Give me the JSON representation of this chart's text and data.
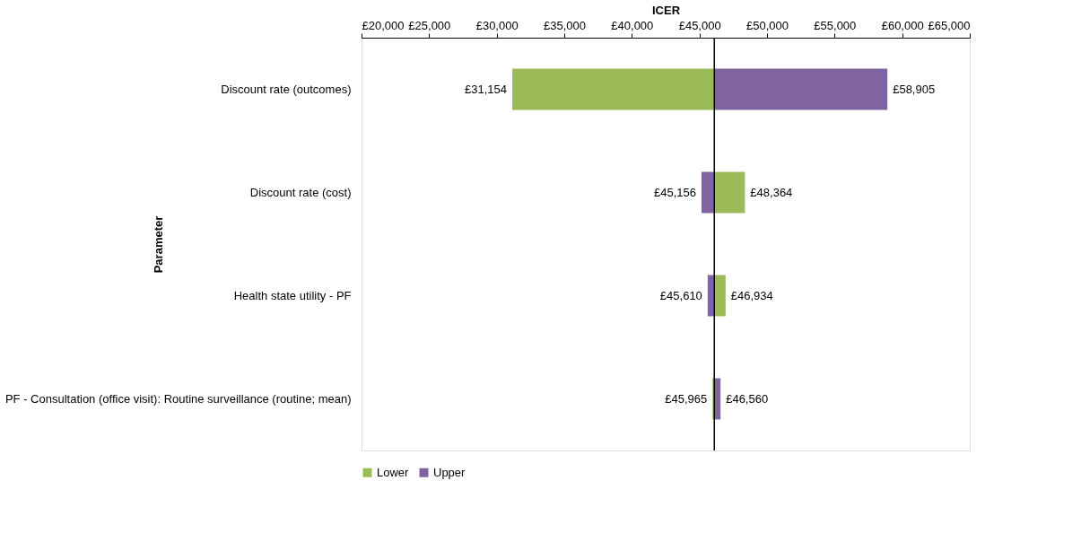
{
  "chart_data": {
    "type": "bar",
    "orientation": "horizontal",
    "xlabel": "ICER",
    "ylabel": "Parameter",
    "categories": [
      "Discount rate (outcomes)",
      "Discount rate (cost)",
      "Health state utility - PF",
      "PF - Consultation (office visit): Routine surveillance (routine; mean)"
    ],
    "series": [
      {
        "name": "Lower",
        "color": "#9bbb59",
        "base": [
          46100,
          46100,
          46100,
          46100
        ],
        "values": [
          -14946,
          2264,
          834,
          -135
        ],
        "value_labels": [
          "£31,154",
          "£48,364",
          "£46,934",
          "£45,965"
        ]
      },
      {
        "name": "Upper",
        "color": "#8064a2",
        "base": [
          46100,
          46100,
          46100,
          46100
        ],
        "values": [
          12805,
          -944,
          -490,
          460
        ],
        "value_labels": [
          "£58,905",
          "£45,156",
          "£45,610",
          "£46,560"
        ]
      }
    ],
    "xlim": [
      20000,
      65000
    ],
    "xticks": [
      {
        "value": 20000,
        "label": "£20,000"
      },
      {
        "value": 25000,
        "label": "£25,000"
      },
      {
        "value": 30000,
        "label": "£30,000"
      },
      {
        "value": 35000,
        "label": "£35,000"
      },
      {
        "value": 40000,
        "label": "£40,000"
      },
      {
        "value": 45000,
        "label": "£45,000"
      },
      {
        "value": 50000,
        "label": "£50,000"
      },
      {
        "value": 55000,
        "label": "£55,000"
      },
      {
        "value": 60000,
        "label": "£60,000"
      },
      {
        "value": 65000,
        "label": "£65,000"
      }
    ],
    "ref_lines": [
      {
        "axis": "x",
        "value": 46100,
        "color": "#000000"
      }
    ],
    "grid": false,
    "legend": "bottom"
  }
}
